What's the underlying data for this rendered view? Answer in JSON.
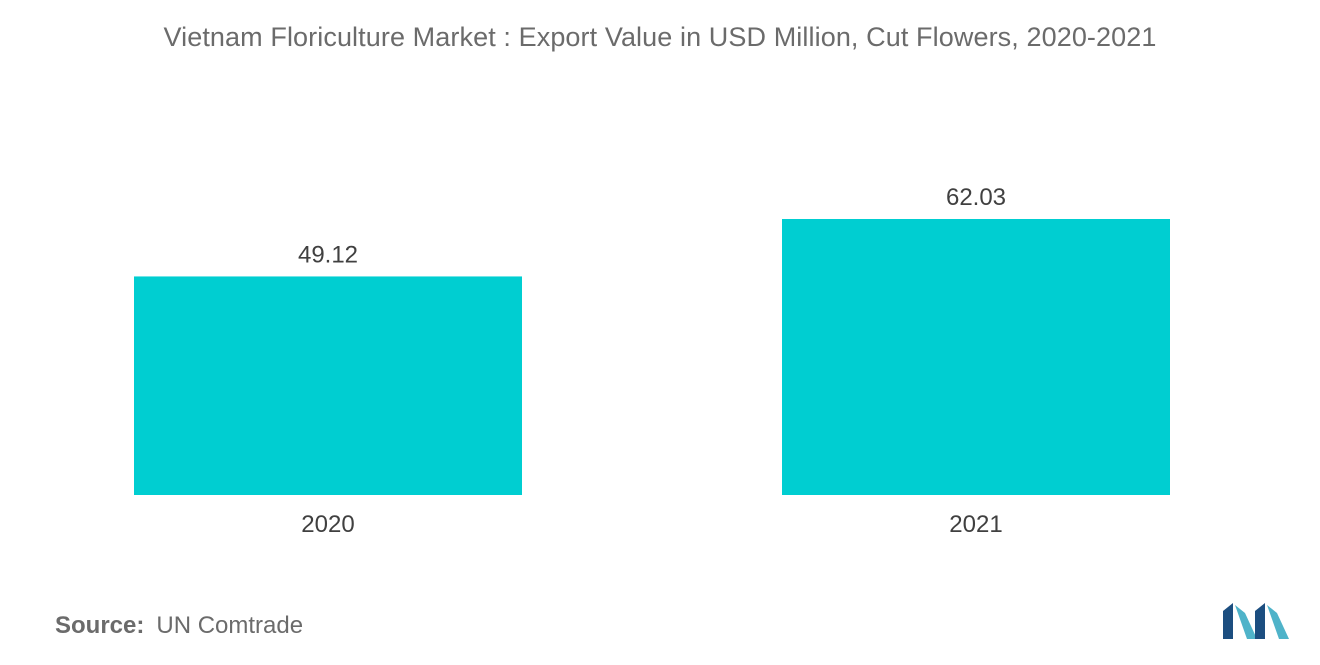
{
  "chart_data": {
    "type": "bar",
    "title": "Vietnam Floriculture Market : Export Value in USD Million, Cut Flowers, 2020-2021",
    "categories": [
      "2020",
      "2021"
    ],
    "values": [
      49.12,
      62.03
    ],
    "value_labels": [
      "49.12",
      "62.03"
    ],
    "xlabel": "",
    "ylabel": "",
    "ylim": [
      0,
      62.03
    ],
    "grid": false,
    "bar_color": "#00ced1"
  },
  "source": {
    "label": "Source:",
    "text": "UN Comtrade"
  },
  "logo": {
    "icon": "mordor-intelligence-logo-icon",
    "colors": [
      "#1c4e80",
      "#4fb3c9"
    ]
  }
}
